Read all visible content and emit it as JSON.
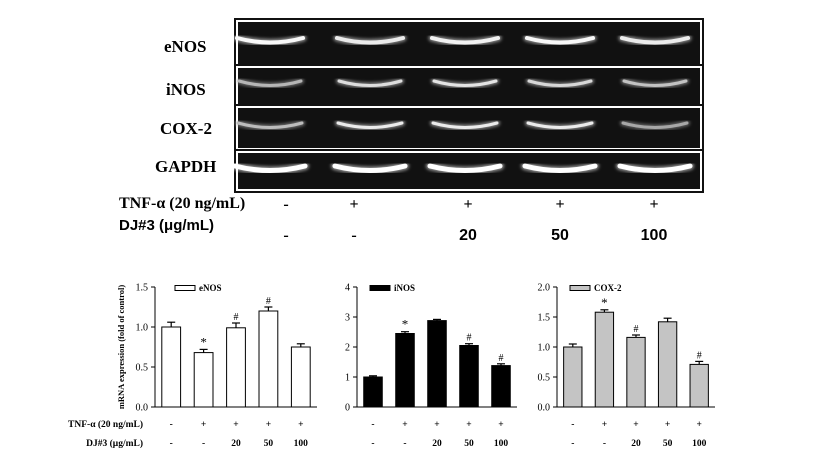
{
  "gel": {
    "genes": [
      "eNOS",
      "iNOS",
      "COX-2",
      "GAPDH"
    ],
    "band_intensity": [
      [
        0.95,
        0.85,
        0.9,
        0.95,
        0.85
      ],
      [
        0.45,
        0.75,
        0.8,
        0.7,
        0.55
      ],
      [
        0.5,
        0.85,
        0.85,
        0.85,
        0.35
      ],
      [
        1.0,
        1.0,
        1.0,
        1.0,
        1.0
      ]
    ],
    "treatments": [
      {
        "label": "TNF-α (20 ng/mL)",
        "values": [
          "-",
          "+",
          "+",
          "+",
          "+"
        ]
      },
      {
        "label": "DJ#3 (μg/mL)",
        "values": [
          "-",
          "-",
          "20",
          "50",
          "100"
        ]
      }
    ]
  },
  "chart_data": [
    {
      "type": "bar",
      "legend": "eNOS",
      "bar_color": "#ffffff",
      "ylabel": "mRNA expression (fold of control)",
      "ylim": [
        0,
        1.5
      ],
      "yticks": [
        "0.0",
        "0.5",
        "1.0",
        "1.5"
      ],
      "values": [
        1.0,
        0.68,
        0.99,
        1.2,
        0.75
      ],
      "errors": [
        0.06,
        0.04,
        0.06,
        0.05,
        0.04
      ],
      "marks": [
        "",
        "*",
        "#",
        "#",
        ""
      ],
      "row1_label": "TNF-α (20 ng/mL)",
      "row1": [
        "-",
        "+",
        "+",
        "+",
        "+"
      ],
      "row2_label": "DJ#3 (μg/mL)",
      "row2": [
        "-",
        "-",
        "20",
        "50",
        "100"
      ]
    },
    {
      "type": "bar",
      "legend": "iNOS",
      "bar_color": "#000000",
      "ylim": [
        0,
        4
      ],
      "yticks": [
        "0",
        "1",
        "2",
        "3",
        "4"
      ],
      "values": [
        1.0,
        2.45,
        2.88,
        2.05,
        1.38
      ],
      "errors": [
        0.04,
        0.06,
        0.04,
        0.06,
        0.06
      ],
      "marks": [
        "",
        "*",
        "",
        "#",
        "#"
      ],
      "row1": [
        "-",
        "+",
        "+",
        "+",
        "+"
      ],
      "row2": [
        "-",
        "-",
        "20",
        "50",
        "100"
      ]
    },
    {
      "type": "bar",
      "legend": "COX-2",
      "bar_color": "#c4c4c4",
      "ylim": [
        0,
        2.0
      ],
      "yticks": [
        "0.0",
        "0.5",
        "1.0",
        "1.5",
        "2.0"
      ],
      "values": [
        1.0,
        1.58,
        1.16,
        1.42,
        0.71
      ],
      "errors": [
        0.05,
        0.04,
        0.04,
        0.06,
        0.05
      ],
      "marks": [
        "",
        "*",
        "#",
        "",
        "#"
      ],
      "row1": [
        "-",
        "+",
        "+",
        "+",
        "+"
      ],
      "row2": [
        "-",
        "-",
        "20",
        "50",
        "100"
      ]
    }
  ]
}
